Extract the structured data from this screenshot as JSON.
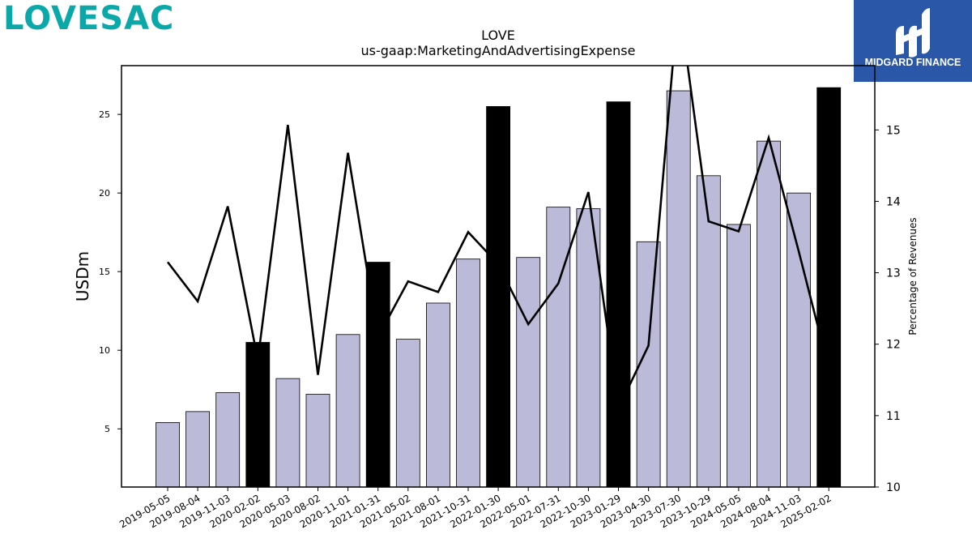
{
  "brand": {
    "logo_text": "LOVESAC",
    "color": "#0aa8a8"
  },
  "partner": {
    "name": "MIDGARD FINANCE",
    "background": "#2a57a8"
  },
  "chart_data": {
    "type": "bar",
    "title": "LOVE",
    "subtitle": "us-gaap:MarketingAndAdvertisingExpense",
    "ylabel": "USDm",
    "y2label": "Percentage of Revenues",
    "ylim": [
      1.3,
      28.1
    ],
    "y2lim": [
      10,
      15.9
    ],
    "yticks": [
      5,
      10,
      15,
      20,
      25
    ],
    "y2ticks": [
      10,
      11,
      12,
      13,
      14,
      15
    ],
    "categories": [
      "2019-05-05",
      "2019-08-04",
      "2019-11-03",
      "2020-02-02",
      "2020-05-03",
      "2020-08-02",
      "2020-11-01",
      "2021-01-31",
      "2021-05-02",
      "2021-08-01",
      "2021-10-31",
      "2022-01-30",
      "2022-05-01",
      "2022-07-31",
      "2022-10-30",
      "2023-01-29",
      "2023-04-30",
      "2023-07-30",
      "2023-10-29",
      "2024-05-05",
      "2024-08-04",
      "2024-11-03",
      "2025-02-02"
    ],
    "series": [
      {
        "kind": "bar",
        "values": [
          5.4,
          6.1,
          7.3,
          10.5,
          8.2,
          7.2,
          11.0,
          15.6,
          10.7,
          13.0,
          15.8,
          25.5,
          15.9,
          19.1,
          19.0,
          25.8,
          16.9,
          26.5,
          21.1,
          18.0,
          23.3,
          20.0,
          26.7
        ],
        "highlight": [
          false,
          false,
          false,
          true,
          false,
          false,
          false,
          true,
          false,
          false,
          false,
          true,
          false,
          false,
          false,
          true,
          false,
          false,
          false,
          false,
          false,
          false,
          true
        ],
        "color": "#bcbad9",
        "highlight_color": "#000000"
      },
      {
        "kind": "line",
        "axis": "right",
        "values": [
          13.15,
          12.6,
          13.93,
          11.78,
          15.07,
          11.57,
          14.68,
          12.1,
          12.88,
          12.73,
          13.57,
          13.12,
          12.28,
          12.85,
          14.13,
          11.1,
          11.98,
          16.85,
          13.72,
          13.58,
          14.89,
          13.3,
          11.65
        ],
        "color": "#000000"
      }
    ]
  }
}
